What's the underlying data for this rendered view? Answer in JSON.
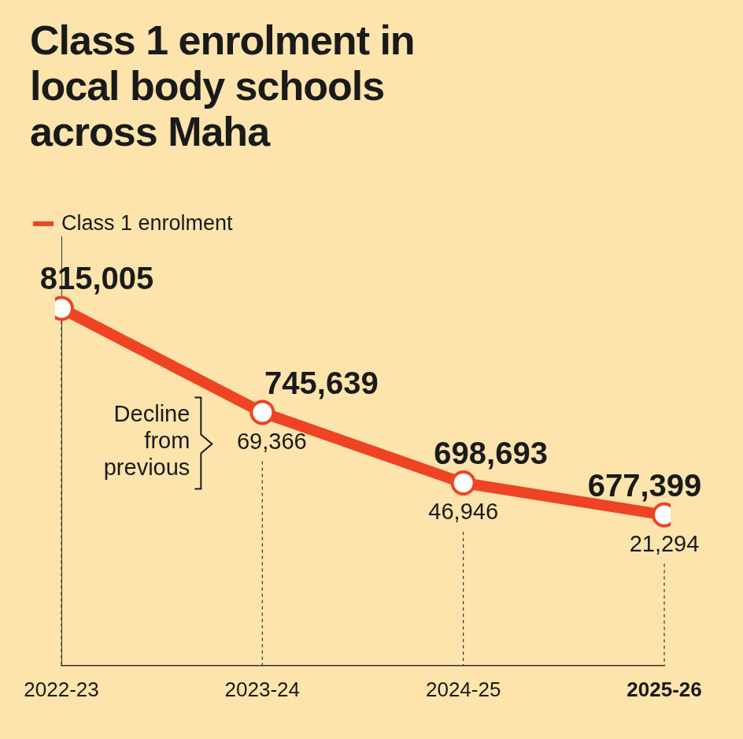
{
  "chart_data": {
    "type": "line",
    "title": "Class 1 enrolment in local body schools across Maha",
    "categories": [
      "2022-23",
      "2023-24",
      "2024-25",
      "2025-26"
    ],
    "series": [
      {
        "name": "Class 1 enrolment",
        "color": "#ee4423",
        "values": [
          815005,
          745639,
          698693,
          677399
        ],
        "value_labels": [
          "815,005",
          "745,639",
          "698,693",
          "677,399"
        ],
        "marker": "circle"
      }
    ],
    "annotations": [
      {
        "text": "Decline from previous",
        "values": [
          null,
          69366,
          46946,
          21294
        ],
        "value_labels": [
          null,
          "69,366",
          "46,946",
          "21,294"
        ]
      }
    ],
    "ylim": [
      577000,
      863000
    ],
    "data_labels": true,
    "tick_labels": "x",
    "grid": false,
    "legend": "top-left"
  }
}
